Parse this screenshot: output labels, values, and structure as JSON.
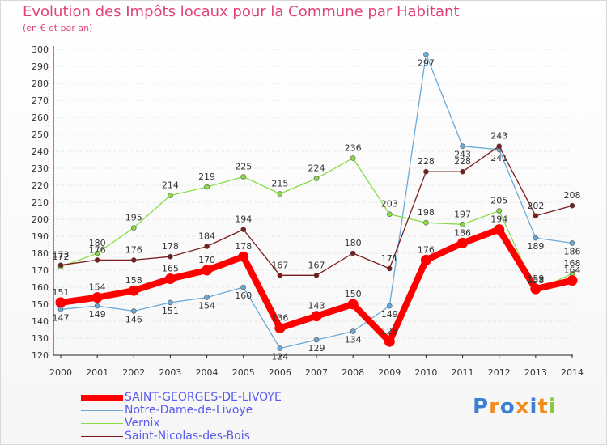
{
  "chart_data": {
    "type": "line",
    "title": "Evolution des Impôts locaux pour la Commune par Habitant",
    "subtitle": "(en € et par an)",
    "xlabel": "",
    "ylabel": "",
    "ylim": [
      120,
      300
    ],
    "yticks": [
      120,
      130,
      140,
      150,
      160,
      170,
      180,
      190,
      200,
      210,
      220,
      230,
      240,
      250,
      260,
      270,
      280,
      290,
      300
    ],
    "grid": true,
    "legend_position": "bottom-left",
    "categories": [
      "2000",
      "2001",
      "2002",
      "2003",
      "2004",
      "2005",
      "2006",
      "2007",
      "2008",
      "2009",
      "2010",
      "2011",
      "2012",
      "2013",
      "2014"
    ],
    "series": [
      {
        "name": "SAINT-GEORGES-DE-LIVOYE",
        "color": "#ff0000",
        "values": [
          151,
          154,
          158,
          165,
          170,
          178,
          136,
          143,
          150,
          128,
          176,
          186,
          194,
          159,
          164
        ]
      },
      {
        "name": "Notre-Dame-de-Livoye",
        "color": "#6aaad8",
        "values": [
          147,
          149,
          146,
          151,
          154,
          160,
          124,
          129,
          134,
          149,
          297,
          243,
          241,
          189,
          186
        ]
      },
      {
        "name": "Vernix",
        "color": "#88dd44",
        "values": [
          172,
          180,
          195,
          214,
          219,
          225,
          215,
          224,
          236,
          203,
          198,
          197,
          205,
          158,
          168
        ]
      },
      {
        "name": "Saint-Nicolas-des-Bois",
        "color": "#7a1c1c",
        "values": [
          173,
          176,
          176,
          178,
          184,
          194,
          167,
          167,
          180,
          171,
          228,
          228,
          243,
          202,
          208
        ]
      }
    ]
  },
  "logo": {
    "text": "Proxiti"
  }
}
